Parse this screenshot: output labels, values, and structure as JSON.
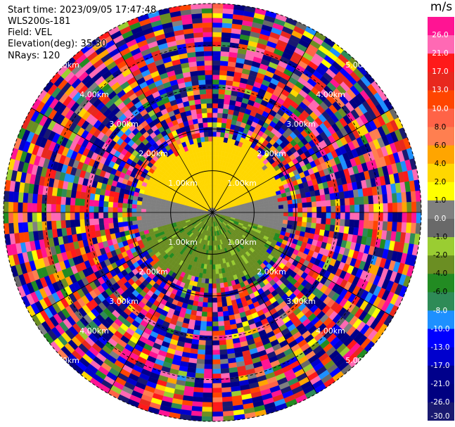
{
  "header": {
    "start_time": "Start time: 2023/09/05 17:47:48",
    "instrument": "WLS200s-181",
    "field": "Field: VEL",
    "elevation": "Elevation(deg): 35.30",
    "nrays": "NRays: 120"
  },
  "chart_data": {
    "type": "heatmap",
    "projection": "polar-ppi",
    "title": "",
    "nrays": 120,
    "range_rings_km": [
      1.0,
      2.0,
      3.0,
      4.0,
      5.0
    ],
    "ring_label_suffix": "km",
    "colorbar": {
      "unit": "m/s",
      "tick_labels": [
        "26.0",
        "21.0",
        "17.0",
        "13.0",
        "10.0",
        "8.0",
        "6.0",
        "4.0",
        "2.0",
        "1.0",
        "0.0",
        "-1.0",
        "-2.0",
        "-4.0",
        "-6.0",
        "-8.0",
        "-10.0",
        "-13.0",
        "-17.0",
        "-21.0",
        "-26.0",
        "-30.0"
      ],
      "bins": [
        {
          "max": 30,
          "color": "#ff1493"
        },
        {
          "max": 26,
          "color": "#ff69b4"
        },
        {
          "max": 21,
          "color": "#ff1a1a"
        },
        {
          "max": 17,
          "color": "#e8281e"
        },
        {
          "max": 13,
          "color": "#ff4500"
        },
        {
          "max": 10,
          "color": "#ff6347"
        },
        {
          "max": 8,
          "color": "#ff7f50"
        },
        {
          "max": 6,
          "color": "#ffa500"
        },
        {
          "max": 4,
          "color": "#ffd700"
        },
        {
          "max": 2,
          "color": "#ffff00"
        },
        {
          "max": 1,
          "color": "#808080"
        },
        {
          "max": 0,
          "color": "#696969"
        },
        {
          "max": -1,
          "color": "#9acd32"
        },
        {
          "max": -2,
          "color": "#6b8e23"
        },
        {
          "max": -4,
          "color": "#228b22"
        },
        {
          "max": -6,
          "color": "#2e8b57"
        },
        {
          "max": -8,
          "color": "#1e90ff"
        },
        {
          "max": -10,
          "color": "#0000ff"
        },
        {
          "max": -13,
          "color": "#0000cd"
        },
        {
          "max": -17,
          "color": "#00008b"
        },
        {
          "max": -21,
          "color": "#000080"
        },
        {
          "max": -26,
          "color": "#191970"
        }
      ]
    },
    "velocity_field": {
      "near_range_km": 1.6,
      "near_north_value_ms": 3.0,
      "near_south_value_ms": -3.0,
      "near_east_west_value_ms": 0.5,
      "noise_value_range_ms": [
        -30,
        30
      ]
    }
  }
}
